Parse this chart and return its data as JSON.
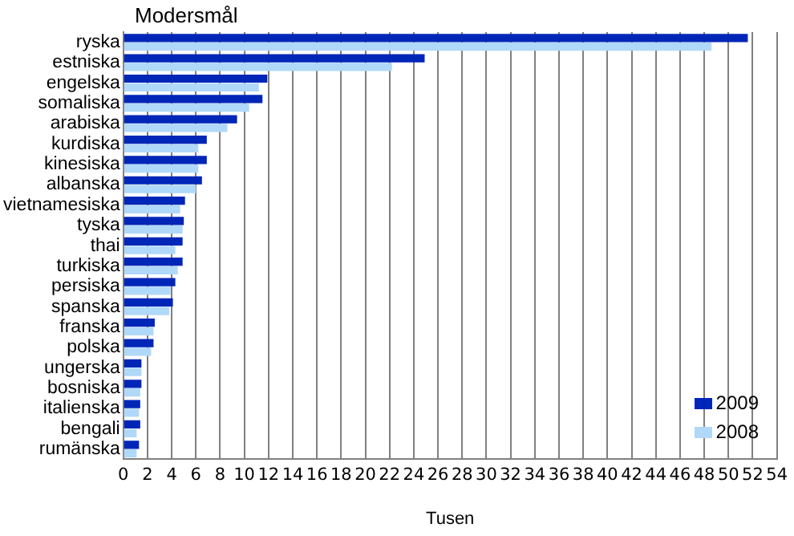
{
  "chart_data": {
    "type": "bar",
    "orientation": "horizontal",
    "ylabel": "Modersmål",
    "xlabel": "Tusen",
    "categories": [
      "ryska",
      "estniska",
      "engelska",
      "somaliska",
      "arabiska",
      "kurdiska",
      "kinesiska",
      "albanska",
      "vietnamesiska",
      "tyska",
      "thai",
      "turkiska",
      "persiska",
      "spanska",
      "franska",
      "polska",
      "ungerska",
      "bosniska",
      "italienska",
      "bengali",
      "rumänska"
    ],
    "series": [
      {
        "name": "2009",
        "color": "#0026b8",
        "values": [
          51.6,
          24.9,
          11.9,
          11.5,
          9.4,
          6.9,
          6.9,
          6.5,
          5.1,
          5.0,
          4.9,
          4.9,
          4.3,
          4.1,
          2.6,
          2.5,
          1.5,
          1.5,
          1.4,
          1.4,
          1.3
        ]
      },
      {
        "name": "2008",
        "color": "#b0d8f8",
        "values": [
          48.6,
          22.2,
          11.2,
          10.4,
          8.6,
          6.2,
          6.2,
          6.0,
          4.7,
          4.9,
          4.3,
          4.5,
          3.9,
          3.8,
          2.5,
          2.3,
          1.5,
          1.4,
          1.3,
          1.1,
          1.1
        ]
      }
    ],
    "xlim": [
      0,
      54
    ],
    "xticks": [
      0,
      2,
      4,
      6,
      8,
      10,
      12,
      14,
      16,
      18,
      20,
      22,
      24,
      26,
      28,
      30,
      32,
      34,
      36,
      38,
      40,
      42,
      44,
      46,
      48,
      50,
      52,
      54
    ],
    "grid": "x",
    "legend": "bottom right"
  }
}
